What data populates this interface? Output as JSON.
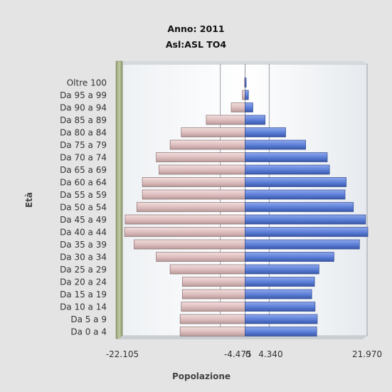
{
  "chart_data": {
    "type": "bar",
    "title": "Anno: 2011",
    "subtitle": "Asl:ASL TO4",
    "xlabel": "Popolazione",
    "ylabel": "Età",
    "xlim": [
      -22105,
      21970
    ],
    "x_ticks": [
      {
        "label": "-22.105",
        "value": -22105
      },
      {
        "label": "-4.475",
        "value": -4475
      },
      {
        "label": "0",
        "value": 0
      },
      {
        "label": "4.340",
        "value": 4340
      },
      {
        "label": "21.970",
        "value": 21970
      }
    ],
    "grid": true,
    "categories": [
      "Oltre 100",
      "Da 95 a 99",
      "Da 90 a 94",
      "Da 85 a 89",
      "Da 80 a 84",
      "Da 75 a 79",
      "Da 70 a 74",
      "Da 65 a 69",
      "Da 60 a 64",
      "Da 55 a 59",
      "Da 50 a 54",
      "Da 45 a 49",
      "Da 40 a 44",
      "Da 35 a 39",
      "Da 30 a 34",
      "Da 25 a 29",
      "Da 20 a 24",
      "Da 15 a 19",
      "Da 10 a 14",
      "Da  5 a  9",
      "Da  0 a  4"
    ],
    "series": [
      {
        "color": "#dcbcbc",
        "values": [
          -100,
          -500,
          -2500,
          -7000,
          -11500,
          -13500,
          -16000,
          -15500,
          -18500,
          -18500,
          -19500,
          -21600,
          -21700,
          -20000,
          -16000,
          -13500,
          -11300,
          -11300,
          -11500,
          -11700,
          -11700
        ]
      },
      {
        "color": "#5a7dd6",
        "values": [
          200,
          600,
          1400,
          3600,
          7300,
          10900,
          14800,
          15200,
          18200,
          18000,
          19500,
          21700,
          22100,
          20600,
          16000,
          13300,
          12500,
          12000,
          12600,
          13000,
          12900
        ]
      }
    ]
  }
}
